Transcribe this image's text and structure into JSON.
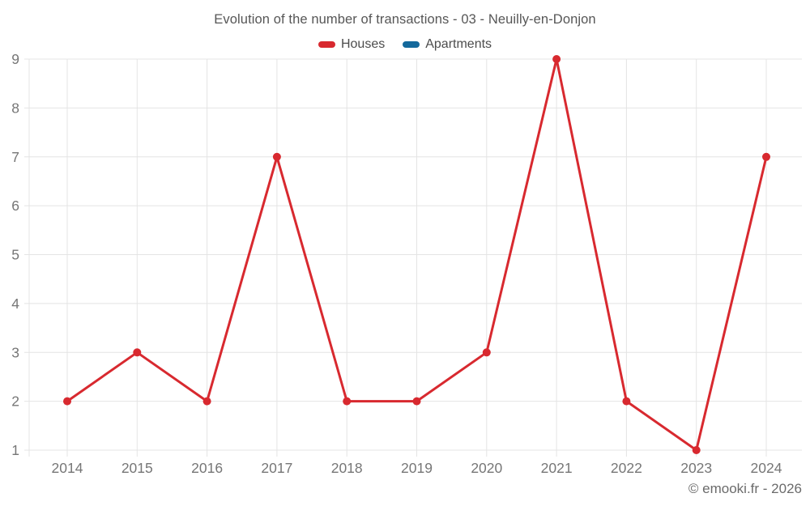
{
  "header": {
    "title": "Evolution of the number of transactions - 03 - Neuilly-en-Donjon"
  },
  "legend": [
    {
      "label": "Houses",
      "color": "#d8292f"
    },
    {
      "label": "Apartments",
      "color": "#14699c"
    }
  ],
  "watermark": "© emooki.fr - 2026",
  "chart_data": {
    "type": "line",
    "title": "Evolution of the number of transactions - 03 - Neuilly-en-Donjon",
    "categories": [
      "2014",
      "2015",
      "2016",
      "2017",
      "2018",
      "2019",
      "2020",
      "2021",
      "2022",
      "2023",
      "2024"
    ],
    "series": [
      {
        "name": "Houses",
        "color": "#d8292f",
        "values": [
          2,
          3,
          2,
          7,
          2,
          2,
          3,
          9,
          2,
          1,
          7
        ]
      },
      {
        "name": "Apartments",
        "color": "#14699c",
        "values": []
      }
    ],
    "xlabel": "",
    "ylabel": "",
    "ylim": [
      1,
      9
    ],
    "yticks": [
      1,
      2,
      3,
      4,
      5,
      6,
      7,
      8,
      9
    ],
    "grid": true,
    "legend_position": "top",
    "grid_color": "#e4e4e4",
    "tick_label_color": "#767676"
  }
}
